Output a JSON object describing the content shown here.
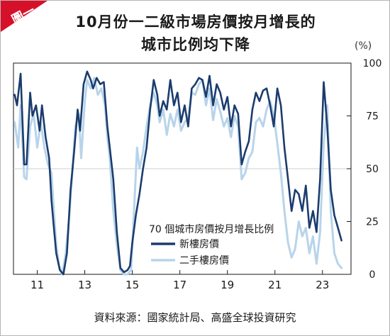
{
  "badge": {
    "label": "圖一",
    "color": "#d7102a"
  },
  "title_line1": "10月份一二級市場房價按月增長的",
  "title_line2": "城市比例均下降",
  "source_note": "資料來源：國家統計局、高盛全球投資研究",
  "chart_data": {
    "type": "line",
    "title": "10月份一二級市場房價按月增長的城市比例均下降",
    "unit_label": "(%)",
    "legend_title": "70 個城市房價按月增長比例",
    "legend_position": "lower-right",
    "x_ticks": [
      {
        "value": 2011,
        "label": "11"
      },
      {
        "value": 2013,
        "label": "13"
      },
      {
        "value": 2015,
        "label": "15"
      },
      {
        "value": 2017,
        "label": "17"
      },
      {
        "value": 2019,
        "label": "19"
      },
      {
        "value": 2021,
        "label": "21"
      },
      {
        "value": 2023,
        "label": "23"
      }
    ],
    "xlim": [
      2010.0,
      2024.2
    ],
    "ylim": [
      0,
      100
    ],
    "y_ticks": [
      {
        "value": 0,
        "label": "0"
      },
      {
        "value": 25,
        "label": "25"
      },
      {
        "value": 50,
        "label": "50"
      },
      {
        "value": 75,
        "label": "75"
      },
      {
        "value": 100,
        "label": "100"
      }
    ],
    "gridlines": [
      50
    ],
    "series": [
      {
        "name": "二手樓房價",
        "color": "#b8d4ea",
        "points": [
          [
            2010.05,
            72
          ],
          [
            2010.2,
            60
          ],
          [
            2010.3,
            80
          ],
          [
            2010.45,
            46
          ],
          [
            2010.55,
            45
          ],
          [
            2010.7,
            70
          ],
          [
            2010.85,
            76
          ],
          [
            2011.0,
            60
          ],
          [
            2011.15,
            72
          ],
          [
            2011.3,
            60
          ],
          [
            2011.45,
            52
          ],
          [
            2011.6,
            48
          ],
          [
            2011.7,
            30
          ],
          [
            2011.8,
            14
          ],
          [
            2011.92,
            4
          ],
          [
            2012.05,
            0
          ],
          [
            2012.2,
            10
          ],
          [
            2012.35,
            28
          ],
          [
            2012.5,
            52
          ],
          [
            2012.6,
            70
          ],
          [
            2012.75,
            76
          ],
          [
            2012.85,
            55
          ],
          [
            2013.0,
            82
          ],
          [
            2013.1,
            92
          ],
          [
            2013.25,
            88
          ],
          [
            2013.4,
            93
          ],
          [
            2013.55,
            85
          ],
          [
            2013.7,
            88
          ],
          [
            2013.85,
            80
          ],
          [
            2013.95,
            65
          ],
          [
            2014.05,
            55
          ],
          [
            2014.2,
            30
          ],
          [
            2014.35,
            14
          ],
          [
            2014.5,
            2
          ],
          [
            2014.65,
            0
          ],
          [
            2014.8,
            0
          ],
          [
            2014.95,
            2
          ],
          [
            2015.05,
            25
          ],
          [
            2015.2,
            60
          ],
          [
            2015.3,
            50
          ],
          [
            2015.45,
            58
          ],
          [
            2015.6,
            70
          ],
          [
            2015.75,
            80
          ],
          [
            2015.9,
            86
          ],
          [
            2016.05,
            80
          ],
          [
            2016.15,
            72
          ],
          [
            2016.3,
            78
          ],
          [
            2016.45,
            66
          ],
          [
            2016.6,
            76
          ],
          [
            2016.75,
            70
          ],
          [
            2016.9,
            78
          ],
          [
            2017.05,
            68
          ],
          [
            2017.2,
            72
          ],
          [
            2017.35,
            74
          ],
          [
            2017.5,
            86
          ],
          [
            2017.65,
            85
          ],
          [
            2017.8,
            90
          ],
          [
            2017.95,
            92
          ],
          [
            2018.1,
            80
          ],
          [
            2018.25,
            88
          ],
          [
            2018.4,
            73
          ],
          [
            2018.55,
            83
          ],
          [
            2018.7,
            77
          ],
          [
            2018.85,
            70
          ],
          [
            2019.0,
            74
          ],
          [
            2019.15,
            65
          ],
          [
            2019.3,
            75
          ],
          [
            2019.45,
            70
          ],
          [
            2019.6,
            45
          ],
          [
            2019.75,
            48
          ],
          [
            2019.9,
            55
          ],
          [
            2020.05,
            58
          ],
          [
            2020.2,
            72
          ],
          [
            2020.35,
            74
          ],
          [
            2020.5,
            70
          ],
          [
            2020.65,
            78
          ],
          [
            2020.8,
            82
          ],
          [
            2020.95,
            75
          ],
          [
            2021.1,
            62
          ],
          [
            2021.25,
            48
          ],
          [
            2021.4,
            30
          ],
          [
            2021.55,
            15
          ],
          [
            2021.7,
            8
          ],
          [
            2021.85,
            12
          ],
          [
            2022.0,
            25
          ],
          [
            2022.15,
            18
          ],
          [
            2022.3,
            22
          ],
          [
            2022.45,
            10
          ],
          [
            2022.6,
            18
          ],
          [
            2022.75,
            5
          ],
          [
            2022.9,
            20
          ],
          [
            2023.05,
            62
          ],
          [
            2023.2,
            80
          ],
          [
            2023.35,
            30
          ],
          [
            2023.5,
            10
          ],
          [
            2023.65,
            5
          ],
          [
            2023.8,
            3
          ]
        ]
      },
      {
        "name": "新樓房價",
        "color": "#1b3c6e",
        "points": [
          [
            2010.05,
            85
          ],
          [
            2010.15,
            80
          ],
          [
            2010.3,
            95
          ],
          [
            2010.45,
            52
          ],
          [
            2010.55,
            52
          ],
          [
            2010.7,
            86
          ],
          [
            2010.8,
            75
          ],
          [
            2010.95,
            80
          ],
          [
            2011.1,
            68
          ],
          [
            2011.2,
            80
          ],
          [
            2011.35,
            65
          ],
          [
            2011.5,
            55
          ],
          [
            2011.6,
            35
          ],
          [
            2011.7,
            22
          ],
          [
            2011.8,
            10
          ],
          [
            2011.95,
            2
          ],
          [
            2012.1,
            0
          ],
          [
            2012.25,
            10
          ],
          [
            2012.4,
            40
          ],
          [
            2012.55,
            58
          ],
          [
            2012.7,
            78
          ],
          [
            2012.8,
            68
          ],
          [
            2012.95,
            90
          ],
          [
            2013.1,
            96
          ],
          [
            2013.25,
            92
          ],
          [
            2013.35,
            88
          ],
          [
            2013.5,
            93
          ],
          [
            2013.65,
            90
          ],
          [
            2013.8,
            91
          ],
          [
            2013.95,
            70
          ],
          [
            2014.05,
            60
          ],
          [
            2014.2,
            45
          ],
          [
            2014.35,
            20
          ],
          [
            2014.5,
            3
          ],
          [
            2014.65,
            1
          ],
          [
            2014.8,
            2
          ],
          [
            2014.9,
            4
          ],
          [
            2015.0,
            15
          ],
          [
            2015.15,
            28
          ],
          [
            2015.3,
            38
          ],
          [
            2015.45,
            50
          ],
          [
            2015.6,
            60
          ],
          [
            2015.75,
            78
          ],
          [
            2015.9,
            92
          ],
          [
            2016.05,
            85
          ],
          [
            2016.15,
            75
          ],
          [
            2016.3,
            82
          ],
          [
            2016.45,
            78
          ],
          [
            2016.6,
            92
          ],
          [
            2016.75,
            80
          ],
          [
            2016.9,
            86
          ],
          [
            2017.05,
            72
          ],
          [
            2017.2,
            80
          ],
          [
            2017.35,
            70
          ],
          [
            2017.5,
            88
          ],
          [
            2017.65,
            90
          ],
          [
            2017.8,
            93
          ],
          [
            2017.95,
            92
          ],
          [
            2018.1,
            84
          ],
          [
            2018.25,
            94
          ],
          [
            2018.4,
            80
          ],
          [
            2018.55,
            90
          ],
          [
            2018.7,
            86
          ],
          [
            2018.85,
            78
          ],
          [
            2019.0,
            84
          ],
          [
            2019.15,
            70
          ],
          [
            2019.3,
            80
          ],
          [
            2019.45,
            76
          ],
          [
            2019.6,
            52
          ],
          [
            2019.75,
            58
          ],
          [
            2019.9,
            63
          ],
          [
            2020.05,
            78
          ],
          [
            2020.2,
            86
          ],
          [
            2020.35,
            82
          ],
          [
            2020.5,
            87
          ],
          [
            2020.65,
            88
          ],
          [
            2020.8,
            80
          ],
          [
            2020.95,
            70
          ],
          [
            2021.1,
            88
          ],
          [
            2021.25,
            80
          ],
          [
            2021.4,
            60
          ],
          [
            2021.55,
            45
          ],
          [
            2021.7,
            30
          ],
          [
            2021.85,
            40
          ],
          [
            2022.0,
            38
          ],
          [
            2022.15,
            30
          ],
          [
            2022.3,
            42
          ],
          [
            2022.45,
            22
          ],
          [
            2022.6,
            30
          ],
          [
            2022.75,
            20
          ],
          [
            2022.9,
            45
          ],
          [
            2023.05,
            91
          ],
          [
            2023.2,
            70
          ],
          [
            2023.35,
            40
          ],
          [
            2023.5,
            28
          ],
          [
            2023.65,
            22
          ],
          [
            2023.8,
            16
          ]
        ]
      }
    ]
  }
}
